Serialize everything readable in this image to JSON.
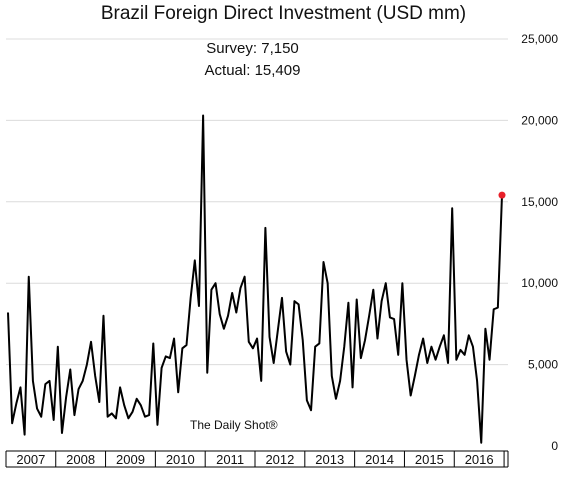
{
  "chart_data": {
    "type": "line",
    "title": "Brazil Foreign Direct Investment (USD mm)",
    "annotations": [
      "Survey: 7,150",
      "Actual:  15,409"
    ],
    "watermark": "The Daily Shot®",
    "ylim": [
      0,
      25000
    ],
    "yticks": [
      {
        "value": 0,
        "label": "0"
      },
      {
        "value": 5000,
        "label": "5,000"
      },
      {
        "value": 10000,
        "label": "10,000"
      },
      {
        "value": 15000,
        "label": "15,000"
      },
      {
        "value": 20000,
        "label": "20,000"
      },
      {
        "value": 25000,
        "label": "25,000"
      }
    ],
    "grid": true,
    "years": [
      "2007",
      "2008",
      "2009",
      "2010",
      "2011",
      "2012",
      "2013",
      "2014",
      "2015",
      "2016"
    ],
    "series": [
      {
        "color": "#000000",
        "start": "2007-01",
        "frequency": "monthly",
        "values": [
          8200,
          1400,
          2600,
          3600,
          700,
          10400,
          4000,
          2300,
          1800,
          3800,
          4000,
          1600,
          6100,
          800,
          3000,
          4700,
          1900,
          3500,
          4000,
          5000,
          6400,
          4300,
          2700,
          8000,
          1800,
          2000,
          1700,
          3600,
          2500,
          1700,
          2100,
          2900,
          2500,
          1800,
          1900,
          6300,
          1300,
          4800,
          5500,
          5400,
          6600,
          3300,
          6000,
          6200,
          9100,
          11400,
          8600,
          20300,
          4500,
          9600,
          10000,
          8100,
          7200,
          8000,
          9400,
          8200,
          9700,
          10400,
          6400,
          6000,
          6600,
          4000,
          13400,
          6700,
          5100,
          7100,
          9100,
          5800,
          5000,
          8900,
          8700,
          6500,
          2800,
          2200,
          6100,
          6300,
          11300,
          10000,
          4300,
          2900,
          4000,
          6100,
          8800,
          3600,
          9000,
          5400,
          6500,
          8000,
          9600,
          6600,
          8900,
          10000,
          7900,
          7800,
          5600,
          10000,
          5300,
          3100,
          4300,
          5600,
          6600,
          5100,
          6100,
          5300,
          6100,
          6800,
          5100,
          14600,
          5300,
          5900,
          5600,
          6800,
          6100,
          4000,
          200,
          7200,
          5300,
          8400,
          8500,
          15409
        ]
      }
    ],
    "highlight": {
      "date": "2016-12",
      "value": 15409,
      "color": "#e8202a"
    }
  }
}
